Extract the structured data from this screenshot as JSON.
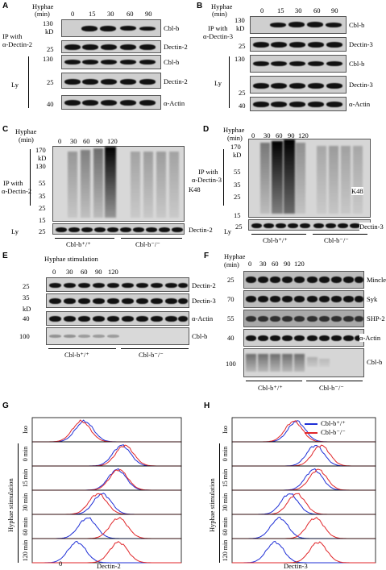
{
  "panels": {
    "A": {
      "label": "A",
      "hyphae_label": "Hyphae",
      "min_label": "(min)",
      "timepoints": [
        "0",
        "15",
        "30",
        "60",
        "90"
      ],
      "ip_label_1": "IP with",
      "ip_label_2": "α-Dectin-2",
      "ly_label": "Ly",
      "kd_label": "kD",
      "markers": [
        "130",
        "25",
        "130",
        "25",
        "40"
      ],
      "bands": [
        "Cbl-b",
        "Dectin-2",
        "Cbl-b",
        "Dectin-2",
        "α-Actin"
      ]
    },
    "B": {
      "label": "B",
      "hyphae_label": "Hyphae",
      "min_label": "(min)",
      "timepoints": [
        "0",
        "15",
        "30",
        "60",
        "90"
      ],
      "ip_label_1": "IP with",
      "ip_label_2": "α-Dectin-3",
      "ly_label": "Ly",
      "kd_label": "kD",
      "markers": [
        "130",
        "25",
        "130",
        "25",
        "40"
      ],
      "bands": [
        "Cbl-b",
        "Dectin-3",
        "Cbl-b",
        "Dectin-3",
        "α-Actin"
      ]
    },
    "C": {
      "label": "C",
      "hyphae_label": "Hyphae",
      "min_label": "(min)",
      "timepoints": [
        "0",
        "30",
        "60",
        "90",
        "120"
      ],
      "ip_label_1": "IP with",
      "ip_label_2": "α-Dectin-2",
      "ly_label": "Ly",
      "kd_label": "kD",
      "markers": [
        "170",
        "130",
        "55",
        "35",
        "25",
        "15",
        "25"
      ],
      "bands": [
        "K48",
        "Dectin-2"
      ],
      "groups": [
        "Cbl-b⁺/⁺",
        "Cbl-b⁻/⁻"
      ]
    },
    "D": {
      "label": "D",
      "hyphae_label": "Hyphae",
      "min_label": "(min)",
      "timepoints": [
        "0",
        "30",
        "60",
        "90",
        "120"
      ],
      "ip_label_1": "IP with",
      "ip_label_2": "α-Dectin-3",
      "ly_label": "Ly",
      "kd_label": "kD",
      "markers": [
        "170",
        "55",
        "35",
        "25",
        "15",
        "25"
      ],
      "bands": [
        "K48",
        "Dectin-3"
      ],
      "groups": [
        "Cbl-b⁺/⁺",
        "Cbl-b⁻/⁻"
      ]
    },
    "E": {
      "label": "E",
      "hyphae_label": "Hyphae stimulation",
      "timepoints": [
        "0",
        "30",
        "60",
        "90",
        "120"
      ],
      "kd_label": "kD",
      "markers": [
        "25",
        "35",
        "40",
        "100"
      ],
      "bands": [
        "Dectin-2",
        "Dectin-3",
        "α-Actin",
        "Cbl-b"
      ],
      "groups": [
        "Cbl-b⁺/⁺",
        "Cbl-b⁻/⁻"
      ]
    },
    "F": {
      "label": "F",
      "hyphae_label": "Hyphae",
      "min_label": "(min)",
      "timepoints": [
        "0",
        "30",
        "60",
        "90",
        "120"
      ],
      "markers": [
        "25",
        "70",
        "55",
        "40",
        "100"
      ],
      "bands": [
        "Mincle",
        "Syk",
        "SHP-2",
        "α-Actin",
        "Cbl-b"
      ],
      "groups": [
        "Cbl-b⁺/⁺",
        "Cbl-b⁻/⁻"
      ]
    },
    "G": {
      "label": "G",
      "y_title": "Hyphae stimulation",
      "rows": [
        "Iso",
        "0 min",
        "15 min",
        "30 min",
        "60 min",
        "120 min"
      ],
      "x_label": "Dectin-2",
      "x_zero": "0"
    },
    "H": {
      "label": "H",
      "y_title": "Hyphae stimulation",
      "rows": [
        "Iso",
        "0 min",
        "15 min",
        "30 min",
        "60 min",
        "120 min"
      ],
      "x_label": "Dectin-3",
      "legend": [
        "Cbl-b⁺/⁺",
        "Cbl-b⁻/⁻"
      ]
    }
  },
  "colors": {
    "wt": "#1f2fd6",
    "ko": "#e0262a"
  }
}
